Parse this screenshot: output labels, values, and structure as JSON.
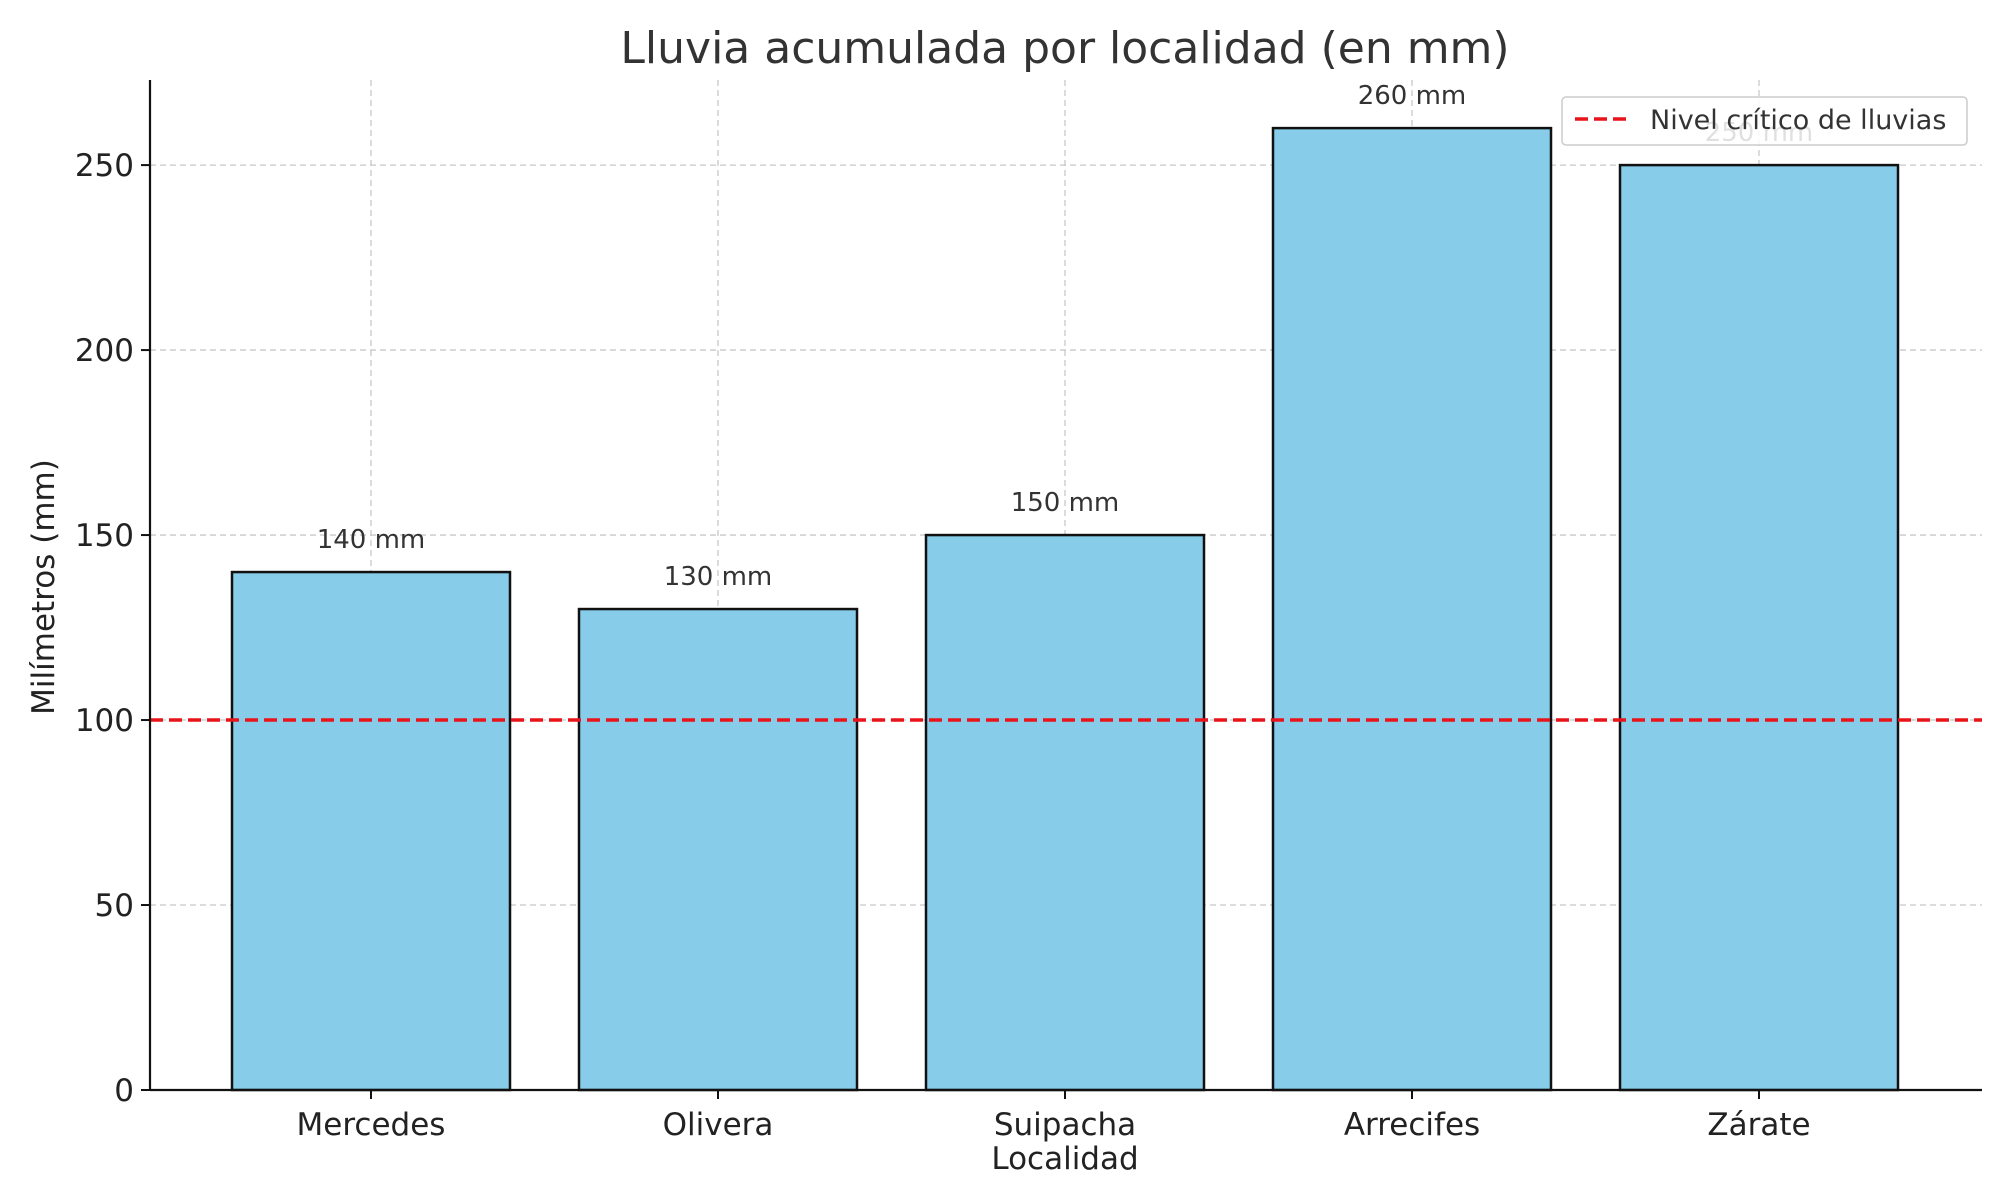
{
  "chart_data": {
    "type": "bar",
    "title": "Lluvia acumulada por localidad (en mm)",
    "xlabel": "Localidad",
    "ylabel": "Milímetros (mm)",
    "categories": [
      "Mercedes",
      "Olivera",
      "Suipacha",
      "Arrecifes",
      "Zárate"
    ],
    "values": [
      140,
      130,
      150,
      260,
      250
    ],
    "value_labels": [
      "140 mm",
      "130 mm",
      "150 mm",
      "260 mm",
      "250 mm"
    ],
    "ylim": [
      0,
      273
    ],
    "yticks": [
      0,
      50,
      100,
      150,
      200,
      250
    ],
    "ytick_labels": [
      "0",
      "50",
      "100",
      "150",
      "200",
      "250"
    ],
    "grid": true,
    "reference_line": {
      "value": 100,
      "label": "Nivel crítico de lluvias",
      "style": "dashed"
    },
    "legend": {
      "placement": "top-right",
      "entries": [
        "Nivel crítico de lluvias"
      ]
    },
    "colors": {
      "bar_fill": "#87cdea",
      "bar_edge": "#111111",
      "reference_line": "#e8141a",
      "grid": "#c8c8c8"
    }
  }
}
